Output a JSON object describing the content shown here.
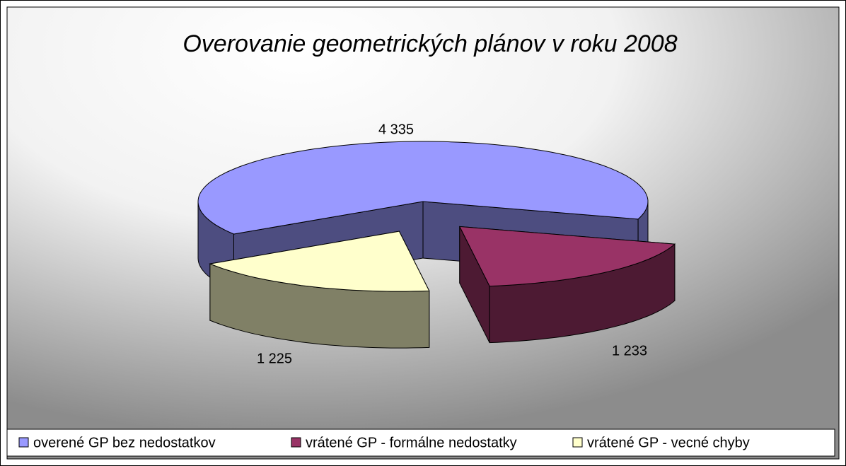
{
  "chart_data": {
    "type": "pie3d",
    "title": "Overovanie geometrických plánov v roku 2008",
    "categories": [
      "overené GP bez nedostatkov",
      "vrátené GP - formálne nedostatky",
      "vrátené GP - vecné chyby"
    ],
    "values": [
      4335,
      1233,
      1225
    ],
    "value_labels": [
      "4 335",
      "1 233",
      "1 225"
    ],
    "colors": [
      "#9999ff",
      "#993366",
      "#ffffcc"
    ],
    "legend": "bottom"
  }
}
